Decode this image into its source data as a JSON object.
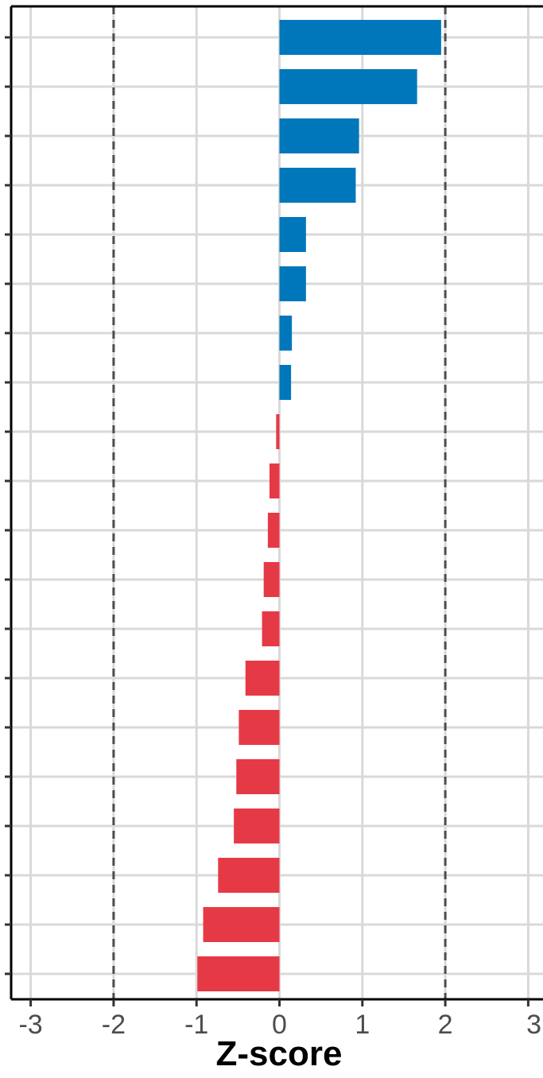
{
  "chart_data": {
    "type": "bar",
    "orientation": "horizontal",
    "title": "",
    "xlabel": "Z-score",
    "ylabel": "",
    "xlim": [
      -3.15,
      3.15
    ],
    "xticks": [
      "-3",
      "-2",
      "-1",
      "0",
      "1",
      "2",
      "3"
    ],
    "reference_lines": [
      -2,
      2
    ],
    "grid": true,
    "positive_color": "#0077bb",
    "negative_color": "#e63946",
    "values": [
      1.95,
      1.66,
      0.96,
      0.92,
      0.32,
      0.32,
      0.15,
      0.14,
      -0.04,
      -0.12,
      -0.14,
      -0.19,
      -0.21,
      -0.41,
      -0.49,
      -0.52,
      -0.55,
      -0.74,
      -0.92,
      -0.99
    ]
  }
}
